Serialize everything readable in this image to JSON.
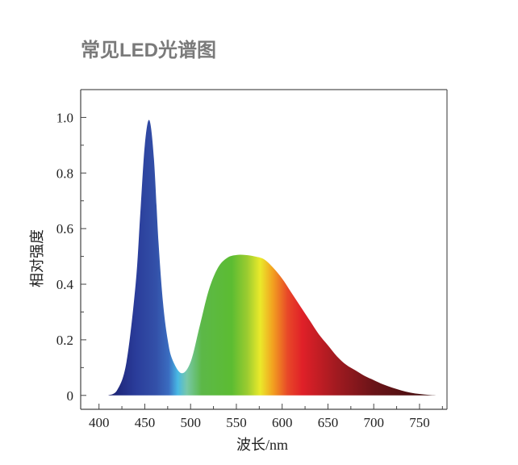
{
  "title": "常见LED光谱图",
  "chart_data": {
    "type": "area",
    "title": "常见LED光谱图",
    "xlabel": "波长/nm",
    "ylabel": "相对强度",
    "xlim": [
      380,
      780
    ],
    "ylim": [
      -0.05,
      1.1
    ],
    "grid": false,
    "legend": "none",
    "x_ticks": [
      "400",
      "450",
      "500",
      "550",
      "600",
      "650",
      "700",
      "750"
    ],
    "y_ticks": [
      "0",
      "0.2",
      "0.4",
      "0.6",
      "0.8",
      "1.0"
    ],
    "x": [
      410,
      420,
      430,
      440,
      445,
      450,
      455,
      460,
      465,
      470,
      475,
      480,
      490,
      500,
      510,
      520,
      530,
      540,
      550,
      560,
      570,
      580,
      590,
      600,
      610,
      620,
      630,
      640,
      650,
      660,
      670,
      680,
      690,
      700,
      710,
      720,
      730,
      740,
      750,
      760,
      770
    ],
    "values": [
      0,
      0.02,
      0.12,
      0.4,
      0.65,
      0.9,
      0.99,
      0.85,
      0.55,
      0.33,
      0.2,
      0.13,
      0.08,
      0.12,
      0.25,
      0.38,
      0.46,
      0.495,
      0.505,
      0.505,
      0.5,
      0.49,
      0.46,
      0.42,
      0.37,
      0.32,
      0.27,
      0.22,
      0.18,
      0.14,
      0.11,
      0.09,
      0.07,
      0.055,
      0.04,
      0.028,
      0.018,
      0.01,
      0.005,
      0.002,
      0
    ],
    "fill_gradient": [
      {
        "nm": 410,
        "color": "#1a1f6e"
      },
      {
        "nm": 440,
        "color": "#2a3c9a"
      },
      {
        "nm": 462,
        "color": "#3350a8"
      },
      {
        "nm": 476,
        "color": "#3a6cc0"
      },
      {
        "nm": 486,
        "color": "#48b8e4"
      },
      {
        "nm": 496,
        "color": "#78c8a8"
      },
      {
        "nm": 512,
        "color": "#5cb848"
      },
      {
        "nm": 545,
        "color": "#5cbc32"
      },
      {
        "nm": 562,
        "color": "#9ccc30"
      },
      {
        "nm": 576,
        "color": "#eaea2a"
      },
      {
        "nm": 590,
        "color": "#f2a020"
      },
      {
        "nm": 606,
        "color": "#e84828"
      },
      {
        "nm": 622,
        "color": "#e02028"
      },
      {
        "nm": 660,
        "color": "#a01a20"
      },
      {
        "nm": 700,
        "color": "#6a1418"
      },
      {
        "nm": 770,
        "color": "#3a0c0c"
      }
    ]
  }
}
